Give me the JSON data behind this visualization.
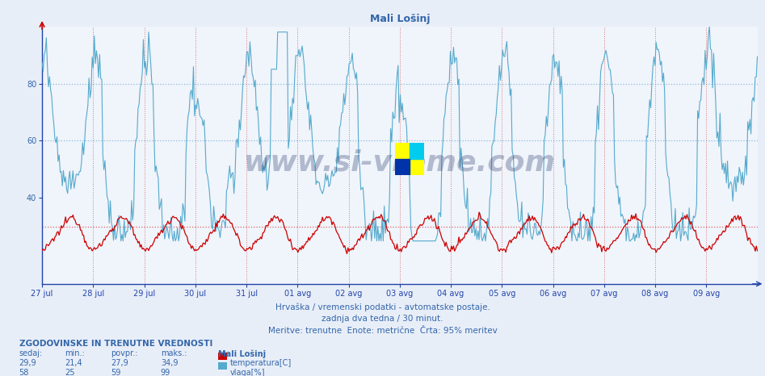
{
  "title": "Mali Lošinj",
  "bg_color": "#e8eef8",
  "plot_bg_color": "#f0f4fb",
  "temperature_color": "#cc0000",
  "humidity_color": "#55aacc",
  "grid_h_color_cyan": "#88bbdd",
  "grid_h_color_red": "#dd6666",
  "grid_v_color": "#cc4444",
  "axis_color": "#2244aa",
  "text_color": "#3366aa",
  "xlabel_lines": [
    "Hrvaška / vremenski podatki - avtomatske postaje.",
    "zadnja dva tedna / 30 minut.",
    "Meritve: trenutne  Enote: metrične  Črta: 95% meritev"
  ],
  "x_labels": [
    "27 jul",
    "28 jul",
    "29 jul",
    "30 jul",
    "31 jul",
    "01 avg",
    "02 avg",
    "03 avg",
    "04 avg",
    "05 avg",
    "06 avg",
    "07 avg",
    "08 avg",
    "09 avg"
  ],
  "y_ticks": [
    40,
    60,
    80
  ],
  "y_lim": [
    10,
    100
  ],
  "hline_cyan_values": [
    60,
    80
  ],
  "hline_red_value": 30,
  "n_points": 672,
  "temp_min": 21.4,
  "temp_max": 34.9,
  "temp_avg": 27.9,
  "temp_current": 29.9,
  "hum_min": 25,
  "hum_max": 99,
  "hum_avg": 59,
  "hum_current": 58,
  "watermark": "www.si-vreme.com",
  "watermark_color": "#223366",
  "watermark_alpha": 0.3,
  "bottom_header": "ZGODOVINSKE IN TRENUTNE VREDNOSTI",
  "col_headers": [
    "sedaj:",
    "min.:",
    "povpr.:",
    "maks.:"
  ],
  "col_values_temp": [
    "29,9",
    "21,4",
    "27,9",
    "34,9"
  ],
  "col_values_hum": [
    "58",
    "25",
    "59",
    "99"
  ],
  "legend_label_temp": "temperatura[C]",
  "legend_label_hum": "vlaga[%]",
  "legend_location": "Mali Lošinj",
  "font_size_title": 9,
  "font_size_axis": 7,
  "font_size_watermark": 26,
  "font_size_bottom": 7
}
